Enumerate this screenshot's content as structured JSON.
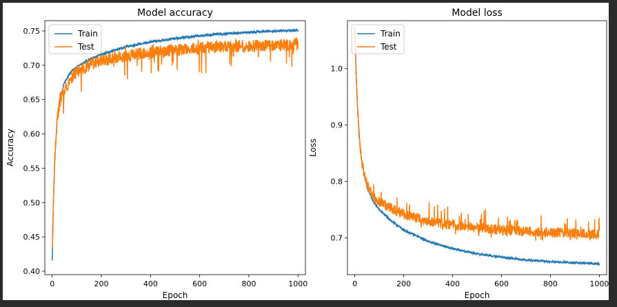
{
  "chart_data": [
    {
      "type": "line",
      "title": "Model accuracy",
      "xlabel": "Epoch",
      "ylabel": "Accuracy",
      "xlim": [
        -30,
        1030
      ],
      "ylim": [
        0.395,
        0.765
      ],
      "xticks": [
        0,
        200,
        400,
        600,
        800,
        1000
      ],
      "yticks": [
        0.4,
        0.45,
        0.5,
        0.55,
        0.6,
        0.65,
        0.7,
        0.75
      ],
      "ytick_labels": [
        "0.40",
        "0.45",
        "0.50",
        "0.55",
        "0.60",
        "0.65",
        "0.70",
        "0.75"
      ],
      "legend": "top-left",
      "series": [
        {
          "name": "Train",
          "color": "#1f77b4",
          "x": [
            0,
            5,
            10,
            20,
            30,
            50,
            75,
            100,
            150,
            200,
            300,
            400,
            500,
            600,
            700,
            800,
            900,
            1000
          ],
          "y": [
            0.415,
            0.5,
            0.56,
            0.62,
            0.65,
            0.675,
            0.69,
            0.698,
            0.708,
            0.716,
            0.727,
            0.734,
            0.739,
            0.743,
            0.746,
            0.748,
            0.75,
            0.751
          ],
          "noise": 0.0015
        },
        {
          "name": "Test",
          "color": "#ff7f0e",
          "x": [
            0,
            5,
            10,
            20,
            30,
            50,
            75,
            100,
            150,
            200,
            300,
            400,
            500,
            600,
            700,
            800,
            900,
            1000
          ],
          "y": [
            0.43,
            0.5,
            0.56,
            0.62,
            0.645,
            0.665,
            0.68,
            0.69,
            0.7,
            0.707,
            0.714,
            0.719,
            0.722,
            0.725,
            0.727,
            0.728,
            0.729,
            0.73
          ],
          "noise": 0.009
        }
      ]
    },
    {
      "type": "line",
      "title": "Model loss",
      "xlabel": "Epoch",
      "ylabel": "Loss",
      "xlim": [
        -30,
        1030
      ],
      "ylim": [
        0.635,
        1.085
      ],
      "xticks": [
        0,
        200,
        400,
        600,
        800,
        1000
      ],
      "yticks": [
        0.7,
        0.8,
        0.9,
        1.0
      ],
      "ytick_labels": [
        "0.7",
        "0.8",
        "0.9",
        "1.0"
      ],
      "legend": "top-left",
      "series": [
        {
          "name": "Train",
          "color": "#1f77b4",
          "x": [
            0,
            5,
            10,
            20,
            30,
            50,
            75,
            100,
            150,
            200,
            300,
            400,
            500,
            600,
            700,
            800,
            900,
            1000
          ],
          "y": [
            1.07,
            1.0,
            0.94,
            0.87,
            0.83,
            0.79,
            0.765,
            0.75,
            0.73,
            0.714,
            0.694,
            0.681,
            0.672,
            0.666,
            0.661,
            0.658,
            0.656,
            0.654
          ],
          "noise": 0.0015
        },
        {
          "name": "Test",
          "color": "#ff7f0e",
          "x": [
            0,
            5,
            10,
            20,
            30,
            50,
            75,
            100,
            150,
            200,
            300,
            400,
            500,
            600,
            700,
            800,
            900,
            1000
          ],
          "y": [
            1.07,
            1.0,
            0.94,
            0.87,
            0.83,
            0.795,
            0.775,
            0.765,
            0.752,
            0.742,
            0.73,
            0.723,
            0.718,
            0.714,
            0.712,
            0.71,
            0.708,
            0.706
          ],
          "noise": 0.009
        }
      ]
    }
  ]
}
